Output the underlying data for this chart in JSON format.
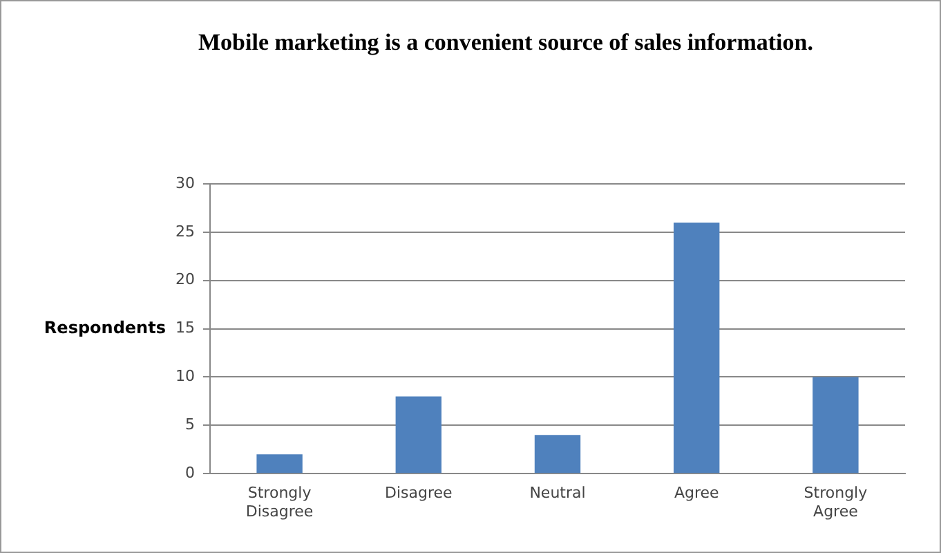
{
  "chart_data": {
    "type": "bar",
    "title": "Mobile marketing is a convenient source of sales information.",
    "ylabel": "Respondents",
    "categories": [
      "Strongly Disagree",
      "Disagree",
      "Neutral",
      "Agree",
      "Strongly Agree"
    ],
    "values": [
      2,
      8,
      4,
      26,
      10
    ],
    "color": "#4f81bd",
    "ylim": [
      0,
      30
    ],
    "yticks": [
      0,
      5,
      10,
      15,
      20,
      25,
      30
    ],
    "grid": "y",
    "legend": false
  }
}
